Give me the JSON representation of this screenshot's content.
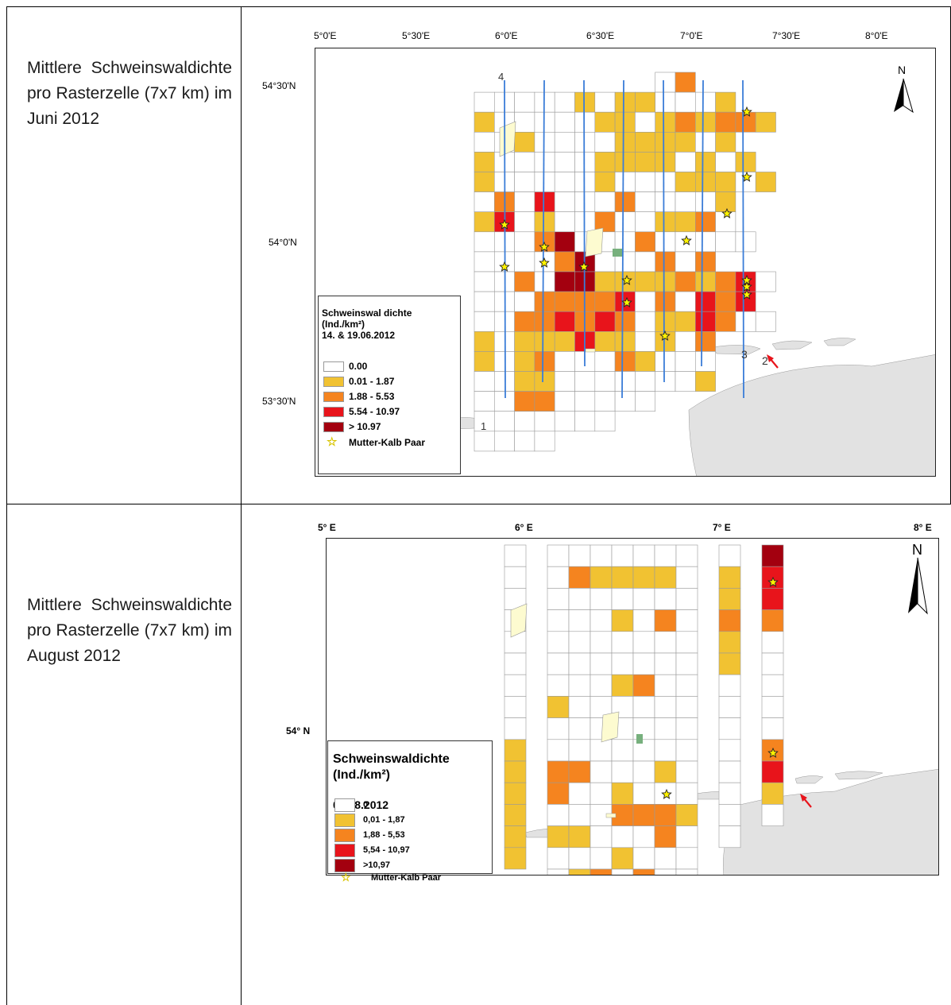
{
  "row1": {
    "caption": "Mittlere Schweinswal­dichte pro Rasterzelle (7x7 km) im Juni 2012",
    "map": {
      "top_axis": [
        "5°0'E",
        "5°30'E",
        "6°0'E",
        "6°30'E",
        "7°0'E",
        "7°30'E",
        "8°0'E"
      ],
      "left_axis": [
        "54°30'N",
        "54°0'N",
        "53°30'N"
      ],
      "transect_labels": [
        "4",
        "1",
        "3",
        "2"
      ],
      "north": "N",
      "legend": {
        "title": "Schweinswal dichte",
        "unit": "(Ind./km²)",
        "date": "14. & 19.06.2012",
        "items": [
          "0.00",
          "0.01 - 1.87",
          "1.88 - 5.53",
          "5.54 - 10.97",
          "> 10.97"
        ],
        "star": "Mutter-Kalb Paar"
      }
    }
  },
  "row2": {
    "caption": "Mittlere Schweinswal­dichte pro Rasterzelle (7x7 km) im August 2012",
    "map": {
      "top_axis": [
        "5° E",
        "6° E",
        "7° E",
        "8° E"
      ],
      "left_axis": [
        "54° N"
      ],
      "north": "N",
      "legend": {
        "title": "Schweinswaldichte",
        "unit": "(Ind./km²)",
        "date": "05.08.2012",
        "items": [
          "0",
          "0,01 - 1,87",
          "1,88 - 5,53",
          "5,54 - 10,97",
          ">10,97"
        ],
        "star": "Mutter-Kalb Paar"
      }
    }
  },
  "colors": {
    "c0": "#ffffff",
    "c1": "#f1c232",
    "c2": "#f5841f",
    "c3": "#e8141b",
    "c4": "#a3000f",
    "land": "#e2e2e2",
    "transect": "#3b7dd8"
  },
  "map1_grid": [
    "xxxxxxxxx02",
    "0000010110001",
    "100000110121221",
    "0010000111101",
    "10000011110101",
    "100000100011101",
    "0203000200001",
    "1301002001120",
    "00024000200000",
    "000024000202",
    "002044111121230",
    "00022223020323",
    "002232320113200",
    "101113110102",
    "101200021000",
    "001100000001",
    "002200000",
    "0000000",
    "0000"
  ],
  "map1_stars": [
    [
      1,
      13
    ],
    [
      5,
      4
    ],
    [
      5,
      10
    ],
    [
      5,
      18
    ],
    [
      3,
      8
    ],
    [
      5,
      11
    ],
    [
      1,
      7
    ],
    [
      1,
      9
    ],
    [
      9,
      13
    ],
    [
      9,
      16
    ],
    [
      7,
      9
    ],
    [
      13,
      15
    ],
    [
      13,
      11
    ],
    [
      11,
      10
    ],
    [
      11,
      3
    ],
    [
      13,
      14
    ],
    [
      13,
      15
    ]
  ],
  "map2_grid_a": [
    "0",
    "0",
    "0",
    "0",
    "0",
    "0",
    "0",
    "0",
    "0",
    "0",
    "0",
    "0",
    "0",
    "0",
    "0",
    "0",
    "0",
    "0",
    "0",
    "0",
    "0",
    "0",
    "0",
    "0",
    "0",
    "0",
    "0",
    "0",
    "0",
    "0",
    "0",
    "0"
  ],
  "map2_stars": [
    [
      0,
      0
    ]
  ]
}
